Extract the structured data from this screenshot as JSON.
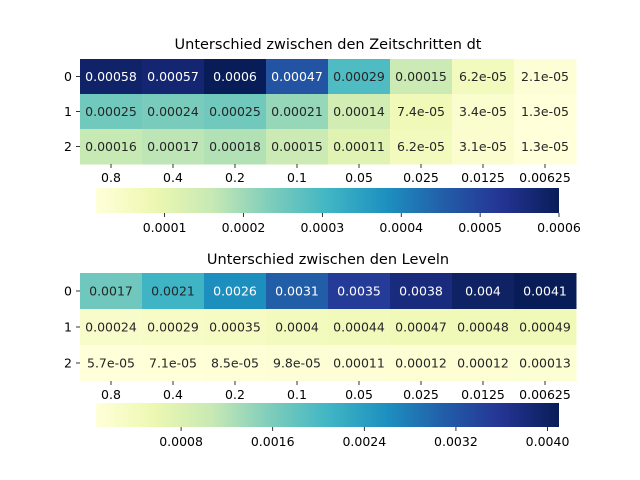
{
  "chart_data": [
    {
      "type": "heatmap",
      "title": "Unterschied zwischen den Zeitschritten dt",
      "x_categories": [
        "0.8",
        "0.4",
        "0.2",
        "0.1",
        "0.05",
        "0.025",
        "0.0125",
        "0.00625"
      ],
      "y_categories": [
        "0",
        "1",
        "2"
      ],
      "values": [
        [
          0.00058,
          0.00057,
          0.0006,
          0.00047,
          0.00029,
          0.00015,
          6.2e-05,
          2.1e-05
        ],
        [
          0.00025,
          0.00024,
          0.00025,
          0.00021,
          0.00014,
          7.4e-05,
          3.4e-05,
          1.3e-05
        ],
        [
          0.00016,
          0.00017,
          0.00018,
          0.00015,
          0.00011,
          6.2e-05,
          3.1e-05,
          1.3e-05
        ]
      ],
      "annotations": [
        [
          "0.00058",
          "0.00057",
          "0.0006",
          "0.00047",
          "0.00029",
          "0.00015",
          "6.2e-05",
          "2.1e-05"
        ],
        [
          "0.00025",
          "0.00024",
          "0.00025",
          "0.00021",
          "0.00014",
          "7.4e-05",
          "3.4e-05",
          "1.3e-05"
        ],
        [
          "0.00016",
          "0.00017",
          "0.00018",
          "0.00015",
          "0.00011",
          "6.2e-05",
          "3.1e-05",
          "1.3e-05"
        ]
      ],
      "colormap": "YlGnBu",
      "colorbar": {
        "orientation": "horizontal",
        "range": [
          1.3e-05,
          0.0006
        ],
        "ticks": [
          0.0001,
          0.0002,
          0.0003,
          0.0004,
          0.0005,
          0.0006
        ],
        "tick_labels": [
          "0.0001",
          "0.0002",
          "0.0003",
          "0.0004",
          "0.0005",
          "0.0006"
        ]
      }
    },
    {
      "type": "heatmap",
      "title": "Unterschied zwischen den Leveln",
      "x_categories": [
        "0.8",
        "0.4",
        "0.2",
        "0.1",
        "0.05",
        "0.025",
        "0.0125",
        "0.00625"
      ],
      "y_categories": [
        "0",
        "1",
        "2"
      ],
      "values": [
        [
          0.0017,
          0.0021,
          0.0026,
          0.0031,
          0.0035,
          0.0038,
          0.004,
          0.0041
        ],
        [
          0.00024,
          0.00029,
          0.00035,
          0.0004,
          0.00044,
          0.00047,
          0.00048,
          0.00049
        ],
        [
          5.7e-05,
          7.1e-05,
          8.5e-05,
          9.8e-05,
          0.00011,
          0.00012,
          0.00012,
          0.00013
        ]
      ],
      "annotations": [
        [
          "0.0017",
          "0.0021",
          "0.0026",
          "0.0031",
          "0.0035",
          "0.0038",
          "0.004",
          "0.0041"
        ],
        [
          "0.00024",
          "0.00029",
          "0.00035",
          "0.0004",
          "0.00044",
          "0.00047",
          "0.00048",
          "0.00049"
        ],
        [
          "5.7e-05",
          "7.1e-05",
          "8.5e-05",
          "9.8e-05",
          "0.00011",
          "0.00012",
          "0.00012",
          "0.00013"
        ]
      ],
      "colormap": "YlGnBu",
      "colorbar": {
        "orientation": "horizontal",
        "range": [
          5.7e-05,
          0.0041
        ],
        "ticks": [
          0.0008,
          0.0016,
          0.0024,
          0.0032,
          0.004
        ],
        "tick_labels": [
          "0.0008",
          "0.0016",
          "0.0024",
          "0.0032",
          "0.0040"
        ]
      }
    }
  ]
}
